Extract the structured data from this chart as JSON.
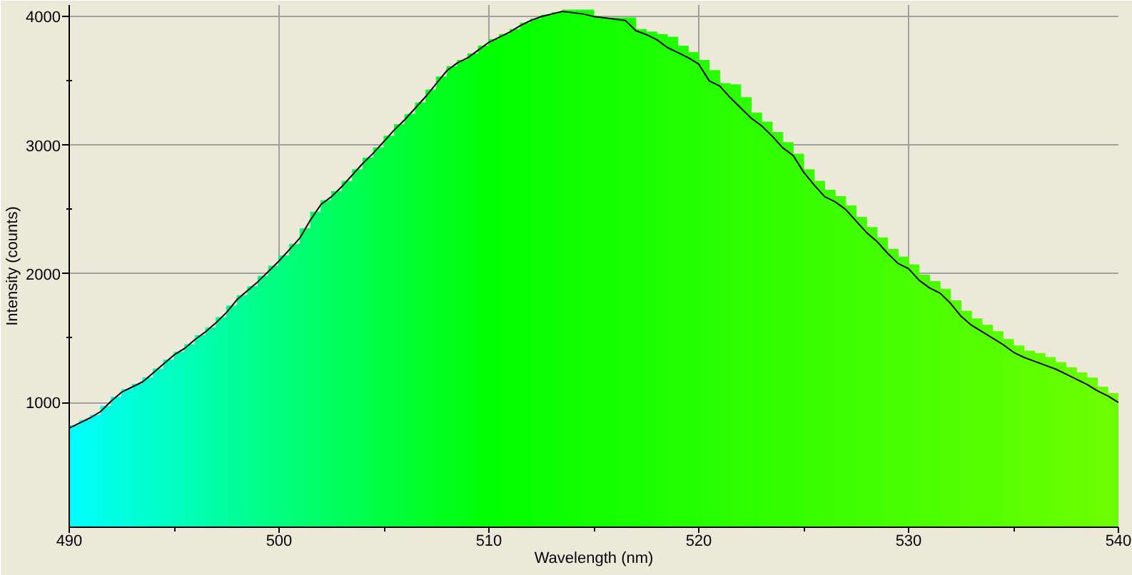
{
  "chart_data": {
    "type": "bar",
    "xlabel": "Wavelength (nm)",
    "ylabel": "Intensity (counts)",
    "xlim": [
      490,
      540
    ],
    "ylim": [
      30,
      4090
    ],
    "xticks": [
      490,
      {
        "value": 495,
        "label": null
      },
      500,
      {
        "value": 505,
        "label": null
      },
      510,
      {
        "value": 515,
        "label": null
      },
      520,
      {
        "value": 525,
        "label": null
      },
      530,
      {
        "value": 535,
        "label": null
      },
      540
    ],
    "yticks": [
      1000,
      {
        "value": 1500,
        "label": null
      },
      2000,
      {
        "value": 2500,
        "label": null
      },
      3000,
      {
        "value": 3500,
        "label": null
      },
      4000
    ],
    "grid": true,
    "series": [
      {
        "x": [
          490.25,
          490.75,
          491.25,
          491.75,
          492.25,
          492.75,
          493.25,
          493.75,
          494.25,
          494.75,
          495.25,
          495.75,
          496.25,
          496.75,
          497.25,
          497.75,
          498.25,
          498.75,
          499.25,
          499.75,
          500.25,
          500.75,
          501.25,
          501.75,
          502.25,
          502.75,
          503.25,
          503.75,
          504.25,
          504.75,
          505.25,
          505.75,
          506.25,
          506.75,
          507.25,
          507.75,
          508.25,
          508.75,
          509.25,
          509.75,
          510.25,
          510.75,
          511.25,
          511.75,
          512.25,
          512.75,
          513.25,
          513.75,
          514.25,
          514.75,
          515.25,
          515.75,
          516.25,
          516.75,
          517.25,
          517.75,
          518.25,
          518.75,
          519.25,
          519.75,
          520.25,
          520.75,
          521.25,
          521.75,
          522.25,
          522.75,
          523.25,
          523.75,
          524.25,
          524.75,
          525.25,
          525.75,
          526.25,
          526.75,
          527.25,
          527.75,
          528.25,
          528.75,
          529.25,
          529.75,
          530.25,
          530.75,
          531.25,
          531.75,
          532.25,
          532.75,
          533.25,
          533.75,
          534.25,
          534.75,
          535.25,
          535.75,
          536.25,
          536.75,
          537.25,
          537.75,
          538.25,
          538.75,
          539.25,
          539.75
        ],
        "values": [
          820,
          860,
          900,
          970,
          1040,
          1100,
          1140,
          1190,
          1260,
          1330,
          1390,
          1450,
          1520,
          1580,
          1660,
          1750,
          1830,
          1900,
          1980,
          2060,
          2140,
          2230,
          2350,
          2480,
          2570,
          2640,
          2720,
          2810,
          2900,
          2980,
          3070,
          3160,
          3240,
          3330,
          3430,
          3530,
          3610,
          3660,
          3710,
          3770,
          3820,
          3860,
          3900,
          3950,
          3980,
          4010,
          4030,
          4050,
          4050,
          4050,
          4000,
          3990,
          3990,
          3990,
          3900,
          3880,
          3860,
          3840,
          3770,
          3720,
          3660,
          3580,
          3480,
          3470,
          3370,
          3250,
          3180,
          3100,
          3020,
          2930,
          2810,
          2720,
          2650,
          2600,
          2530,
          2440,
          2360,
          2280,
          2190,
          2130,
          2070,
          1990,
          1940,
          1880,
          1790,
          1710,
          1650,
          1600,
          1550,
          1490,
          1440,
          1400,
          1380,
          1350,
          1310,
          1270,
          1230,
          1190,
          1120,
          1070
        ],
        "colors": [
          "#00fffc",
          "#00fff5",
          "#00ffef",
          "#00ffe9",
          "#00ffe2",
          "#00ffdc",
          "#00ffd6",
          "#00ffcf",
          "#00ffc9",
          "#00ffc2",
          "#00ffbc",
          "#00ffb6",
          "#00ffaf",
          "#00ffa9",
          "#00ffa3",
          "#00ff9c",
          "#00ff96",
          "#00ff8f",
          "#00ff89",
          "#00ff83",
          "#00ff7c",
          "#00ff76",
          "#00ff70",
          "#00ff69",
          "#00ff63",
          "#00ff5c",
          "#00ff56",
          "#00ff50",
          "#00ff49",
          "#00ff43",
          "#00ff3d",
          "#00ff36",
          "#00ff30",
          "#00ff29",
          "#00ff23",
          "#00ff1d",
          "#00ff16",
          "#00ff10",
          "#00ff0a",
          "#00ff03",
          "#01ff00",
          "#03ff00",
          "#05ff00",
          "#06ff00",
          "#08ff00",
          "#0aff00",
          "#0cff00",
          "#0eff00",
          "#0fff00",
          "#11ff00",
          "#13ff00",
          "#15ff00",
          "#17ff00",
          "#19ff00",
          "#1aff00",
          "#1cff00",
          "#1eff00",
          "#20ff00",
          "#22ff00",
          "#24ff00",
          "#25ff00",
          "#27ff00",
          "#29ff00",
          "#2bff00",
          "#2dff00",
          "#2eff00",
          "#30ff00",
          "#32ff00",
          "#34ff00",
          "#36ff00",
          "#38ff00",
          "#39ff00",
          "#3bff00",
          "#3dff00",
          "#3fff00",
          "#41ff00",
          "#42ff00",
          "#44ff00",
          "#46ff00",
          "#48ff00",
          "#4aff00",
          "#4cff00",
          "#4dff00",
          "#4fff00",
          "#51ff00",
          "#53ff00",
          "#55ff00",
          "#57ff00",
          "#58ff00",
          "#5aff00",
          "#5cff00",
          "#5eff00",
          "#60ff00",
          "#61ff00",
          "#63ff00",
          "#65ff00",
          "#67ff00",
          "#69ff00",
          "#6bff00",
          "#6cff00"
        ]
      },
      {
        "type": "line",
        "color": "#000000",
        "x": [
          490,
          490.5,
          491,
          491.5,
          492,
          492.5,
          493,
          493.5,
          494,
          494.5,
          495,
          495.5,
          496,
          496.5,
          497,
          497.5,
          498,
          498.5,
          499,
          499.5,
          500,
          500.5,
          501,
          501.5,
          502,
          502.5,
          503,
          503.5,
          504,
          504.5,
          505,
          505.5,
          506,
          506.5,
          507,
          507.5,
          508,
          508.5,
          509,
          509.5,
          510,
          510.5,
          511,
          511.5,
          512,
          512.5,
          513,
          513.5,
          514,
          514.5,
          515,
          515.5,
          516,
          516.5,
          517,
          517.5,
          518,
          518.5,
          519,
          519.5,
          520,
          520.5,
          521,
          521.5,
          522,
          522.5,
          523,
          523.5,
          524,
          524.5,
          525,
          525.5,
          526,
          526.5,
          527,
          527.5,
          528,
          528.5,
          529,
          529.5,
          530,
          530.5,
          531,
          531.5,
          532,
          532.5,
          533,
          533.5,
          534,
          534.5,
          535,
          535.5,
          536,
          536.5,
          537,
          537.5,
          538,
          538.5,
          539,
          539.5,
          540
        ],
        "values": [
          800,
          840,
          880,
          930,
          1010,
          1080,
          1120,
          1160,
          1230,
          1300,
          1370,
          1420,
          1490,
          1550,
          1620,
          1700,
          1800,
          1870,
          1940,
          2020,
          2100,
          2190,
          2280,
          2420,
          2540,
          2600,
          2680,
          2770,
          2860,
          2940,
          3030,
          3120,
          3200,
          3290,
          3380,
          3480,
          3580,
          3640,
          3680,
          3740,
          3800,
          3840,
          3880,
          3930,
          3970,
          4000,
          4020,
          4040,
          4030,
          4020,
          4000,
          3990,
          3980,
          3970,
          3890,
          3860,
          3820,
          3760,
          3720,
          3680,
          3630,
          3500,
          3460,
          3370,
          3290,
          3210,
          3150,
          3070,
          2980,
          2920,
          2790,
          2690,
          2600,
          2560,
          2500,
          2410,
          2320,
          2250,
          2160,
          2080,
          2040,
          1950,
          1890,
          1850,
          1770,
          1670,
          1600,
          1550,
          1500,
          1450,
          1390,
          1350,
          1320,
          1290,
          1260,
          1220,
          1180,
          1140,
          1090,
          1050,
          1000
        ]
      }
    ]
  }
}
